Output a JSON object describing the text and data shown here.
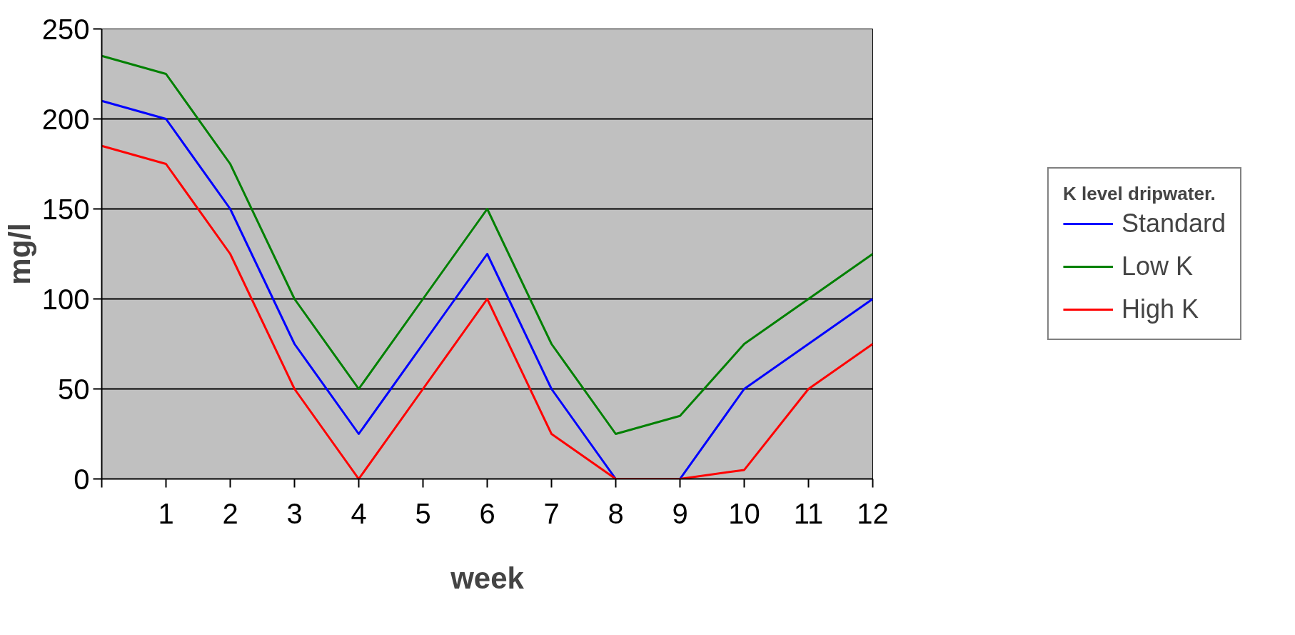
{
  "chart_data": {
    "type": "line",
    "xlabel": "week",
    "ylabel": "mg/l",
    "legend_title": "K level dripwater.",
    "x": [
      0,
      1,
      2,
      3,
      4,
      5,
      6,
      7,
      8,
      9,
      10,
      11,
      12
    ],
    "series": [
      {
        "name": "Standard",
        "color": "#0000ff",
        "values": [
          210,
          200,
          150,
          75,
          25,
          75,
          125,
          50,
          0,
          0,
          50,
          75,
          100
        ]
      },
      {
        "name": "Low K",
        "color": "#008000",
        "values": [
          235,
          225,
          175,
          100,
          50,
          100,
          150,
          75,
          25,
          35,
          75,
          100,
          125
        ]
      },
      {
        "name": "High K",
        "color": "#ff0000",
        "values": [
          185,
          175,
          125,
          50,
          0,
          50,
          100,
          25,
          0,
          0,
          5,
          50,
          75
        ]
      }
    ],
    "xlim": [
      0,
      12
    ],
    "ylim": [
      0,
      250
    ],
    "xticks": [
      {
        "value": 0,
        "label": null
      },
      1,
      2,
      3,
      4,
      5,
      6,
      7,
      8,
      9,
      10,
      11,
      12
    ],
    "yticks": [
      0,
      50,
      100,
      150,
      200,
      250
    ],
    "grid": "y",
    "legend": "right",
    "marker": "none",
    "line_style": "solid"
  }
}
